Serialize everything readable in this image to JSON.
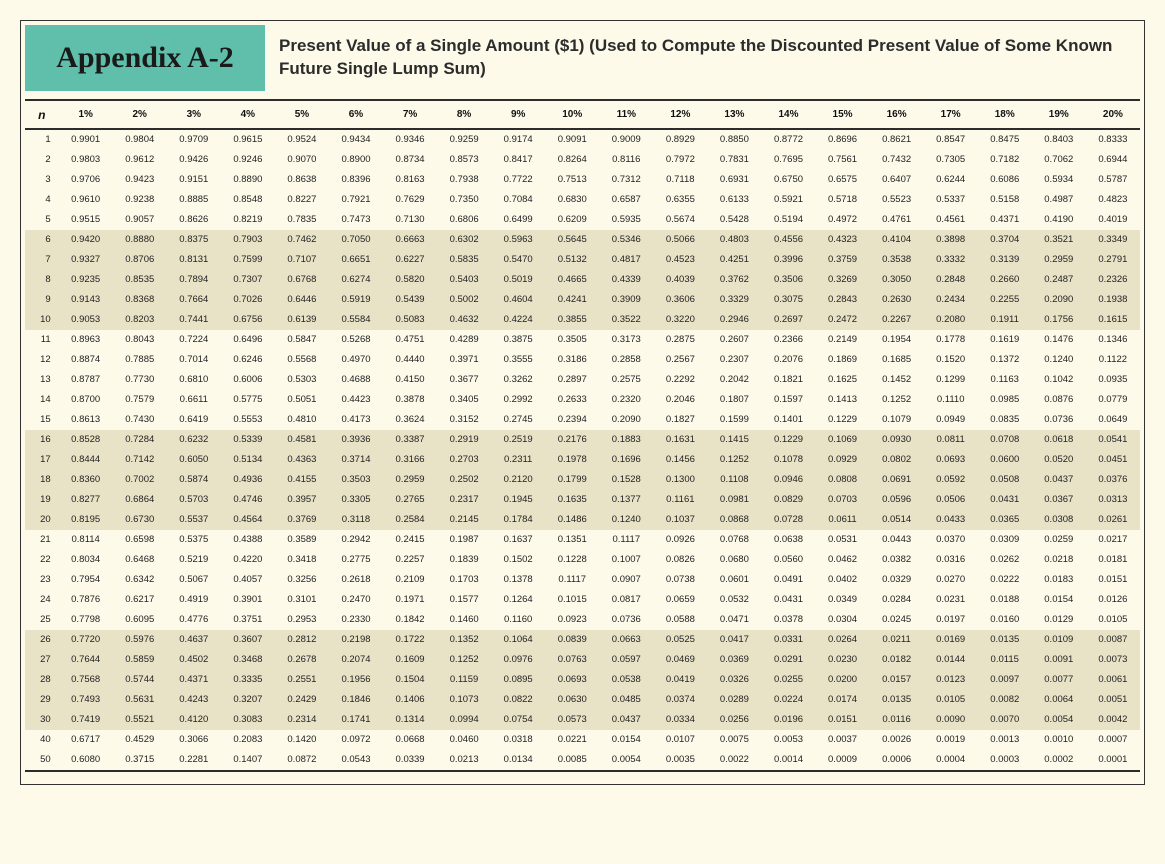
{
  "header": {
    "appendix_label": "Appendix A-2",
    "title": "Present Value of a Single Amount ($1) (Used to Compute the Discounted Present Value of Some Known Future Single Lump Sum)"
  },
  "styling": {
    "badge_bg": "#5fbfaa",
    "page_bg": "#fdfaea",
    "band_bg": "#e8e2c6",
    "rule_color": "#2c2c2c",
    "appendix_font": "Brush Script MT",
    "appendix_fontsize": 30,
    "title_fontsize": 17,
    "header_fontsize": 10,
    "cell_fontsize": 9.5,
    "band_size": 5
  },
  "table": {
    "n_label": "n",
    "columns": [
      "1%",
      "2%",
      "3%",
      "4%",
      "5%",
      "6%",
      "7%",
      "8%",
      "9%",
      "10%",
      "11%",
      "12%",
      "13%",
      "14%",
      "15%",
      "16%",
      "17%",
      "18%",
      "19%",
      "20%"
    ],
    "rows": [
      {
        "n": 1,
        "v": [
          "0.9901",
          "0.9804",
          "0.9709",
          "0.9615",
          "0.9524",
          "0.9434",
          "0.9346",
          "0.9259",
          "0.9174",
          "0.9091",
          "0.9009",
          "0.8929",
          "0.8850",
          "0.8772",
          "0.8696",
          "0.8621",
          "0.8547",
          "0.8475",
          "0.8403",
          "0.8333"
        ]
      },
      {
        "n": 2,
        "v": [
          "0.9803",
          "0.9612",
          "0.9426",
          "0.9246",
          "0.9070",
          "0.8900",
          "0.8734",
          "0.8573",
          "0.8417",
          "0.8264",
          "0.8116",
          "0.7972",
          "0.7831",
          "0.7695",
          "0.7561",
          "0.7432",
          "0.7305",
          "0.7182",
          "0.7062",
          "0.6944"
        ]
      },
      {
        "n": 3,
        "v": [
          "0.9706",
          "0.9423",
          "0.9151",
          "0.8890",
          "0.8638",
          "0.8396",
          "0.8163",
          "0.7938",
          "0.7722",
          "0.7513",
          "0.7312",
          "0.7118",
          "0.6931",
          "0.6750",
          "0.6575",
          "0.6407",
          "0.6244",
          "0.6086",
          "0.5934",
          "0.5787"
        ]
      },
      {
        "n": 4,
        "v": [
          "0.9610",
          "0.9238",
          "0.8885",
          "0.8548",
          "0.8227",
          "0.7921",
          "0.7629",
          "0.7350",
          "0.7084",
          "0.6830",
          "0.6587",
          "0.6355",
          "0.6133",
          "0.5921",
          "0.5718",
          "0.5523",
          "0.5337",
          "0.5158",
          "0.4987",
          "0.4823"
        ]
      },
      {
        "n": 5,
        "v": [
          "0.9515",
          "0.9057",
          "0.8626",
          "0.8219",
          "0.7835",
          "0.7473",
          "0.7130",
          "0.6806",
          "0.6499",
          "0.6209",
          "0.5935",
          "0.5674",
          "0.5428",
          "0.5194",
          "0.4972",
          "0.4761",
          "0.4561",
          "0.4371",
          "0.4190",
          "0.4019"
        ]
      },
      {
        "n": 6,
        "v": [
          "0.9420",
          "0.8880",
          "0.8375",
          "0.7903",
          "0.7462",
          "0.7050",
          "0.6663",
          "0.6302",
          "0.5963",
          "0.5645",
          "0.5346",
          "0.5066",
          "0.4803",
          "0.4556",
          "0.4323",
          "0.4104",
          "0.3898",
          "0.3704",
          "0.3521",
          "0.3349"
        ]
      },
      {
        "n": 7,
        "v": [
          "0.9327",
          "0.8706",
          "0.8131",
          "0.7599",
          "0.7107",
          "0.6651",
          "0.6227",
          "0.5835",
          "0.5470",
          "0.5132",
          "0.4817",
          "0.4523",
          "0.4251",
          "0.3996",
          "0.3759",
          "0.3538",
          "0.3332",
          "0.3139",
          "0.2959",
          "0.2791"
        ]
      },
      {
        "n": 8,
        "v": [
          "0.9235",
          "0.8535",
          "0.7894",
          "0.7307",
          "0.6768",
          "0.6274",
          "0.5820",
          "0.5403",
          "0.5019",
          "0.4665",
          "0.4339",
          "0.4039",
          "0.3762",
          "0.3506",
          "0.3269",
          "0.3050",
          "0.2848",
          "0.2660",
          "0.2487",
          "0.2326"
        ]
      },
      {
        "n": 9,
        "v": [
          "0.9143",
          "0.8368",
          "0.7664",
          "0.7026",
          "0.6446",
          "0.5919",
          "0.5439",
          "0.5002",
          "0.4604",
          "0.4241",
          "0.3909",
          "0.3606",
          "0.3329",
          "0.3075",
          "0.2843",
          "0.2630",
          "0.2434",
          "0.2255",
          "0.2090",
          "0.1938"
        ]
      },
      {
        "n": 10,
        "v": [
          "0.9053",
          "0.8203",
          "0.7441",
          "0.6756",
          "0.6139",
          "0.5584",
          "0.5083",
          "0.4632",
          "0.4224",
          "0.3855",
          "0.3522",
          "0.3220",
          "0.2946",
          "0.2697",
          "0.2472",
          "0.2267",
          "0.2080",
          "0.1911",
          "0.1756",
          "0.1615"
        ]
      },
      {
        "n": 11,
        "v": [
          "0.8963",
          "0.8043",
          "0.7224",
          "0.6496",
          "0.5847",
          "0.5268",
          "0.4751",
          "0.4289",
          "0.3875",
          "0.3505",
          "0.3173",
          "0.2875",
          "0.2607",
          "0.2366",
          "0.2149",
          "0.1954",
          "0.1778",
          "0.1619",
          "0.1476",
          "0.1346"
        ]
      },
      {
        "n": 12,
        "v": [
          "0.8874",
          "0.7885",
          "0.7014",
          "0.6246",
          "0.5568",
          "0.4970",
          "0.4440",
          "0.3971",
          "0.3555",
          "0.3186",
          "0.2858",
          "0.2567",
          "0.2307",
          "0.2076",
          "0.1869",
          "0.1685",
          "0.1520",
          "0.1372",
          "0.1240",
          "0.1122"
        ]
      },
      {
        "n": 13,
        "v": [
          "0.8787",
          "0.7730",
          "0.6810",
          "0.6006",
          "0.5303",
          "0.4688",
          "0.4150",
          "0.3677",
          "0.3262",
          "0.2897",
          "0.2575",
          "0.2292",
          "0.2042",
          "0.1821",
          "0.1625",
          "0.1452",
          "0.1299",
          "0.1163",
          "0.1042",
          "0.0935"
        ]
      },
      {
        "n": 14,
        "v": [
          "0.8700",
          "0.7579",
          "0.6611",
          "0.5775",
          "0.5051",
          "0.4423",
          "0.3878",
          "0.3405",
          "0.2992",
          "0.2633",
          "0.2320",
          "0.2046",
          "0.1807",
          "0.1597",
          "0.1413",
          "0.1252",
          "0.1110",
          "0.0985",
          "0.0876",
          "0.0779"
        ]
      },
      {
        "n": 15,
        "v": [
          "0.8613",
          "0.7430",
          "0.6419",
          "0.5553",
          "0.4810",
          "0.4173",
          "0.3624",
          "0.3152",
          "0.2745",
          "0.2394",
          "0.2090",
          "0.1827",
          "0.1599",
          "0.1401",
          "0.1229",
          "0.1079",
          "0.0949",
          "0.0835",
          "0.0736",
          "0.0649"
        ]
      },
      {
        "n": 16,
        "v": [
          "0.8528",
          "0.7284",
          "0.6232",
          "0.5339",
          "0.4581",
          "0.3936",
          "0.3387",
          "0.2919",
          "0.2519",
          "0.2176",
          "0.1883",
          "0.1631",
          "0.1415",
          "0.1229",
          "0.1069",
          "0.0930",
          "0.0811",
          "0.0708",
          "0.0618",
          "0.0541"
        ]
      },
      {
        "n": 17,
        "v": [
          "0.8444",
          "0.7142",
          "0.6050",
          "0.5134",
          "0.4363",
          "0.3714",
          "0.3166",
          "0.2703",
          "0.2311",
          "0.1978",
          "0.1696",
          "0.1456",
          "0.1252",
          "0.1078",
          "0.0929",
          "0.0802",
          "0.0693",
          "0.0600",
          "0.0520",
          "0.0451"
        ]
      },
      {
        "n": 18,
        "v": [
          "0.8360",
          "0.7002",
          "0.5874",
          "0.4936",
          "0.4155",
          "0.3503",
          "0.2959",
          "0.2502",
          "0.2120",
          "0.1799",
          "0.1528",
          "0.1300",
          "0.1108",
          "0.0946",
          "0.0808",
          "0.0691",
          "0.0592",
          "0.0508",
          "0.0437",
          "0.0376"
        ]
      },
      {
        "n": 19,
        "v": [
          "0.8277",
          "0.6864",
          "0.5703",
          "0.4746",
          "0.3957",
          "0.3305",
          "0.2765",
          "0.2317",
          "0.1945",
          "0.1635",
          "0.1377",
          "0.1161",
          "0.0981",
          "0.0829",
          "0.0703",
          "0.0596",
          "0.0506",
          "0.0431",
          "0.0367",
          "0.0313"
        ]
      },
      {
        "n": 20,
        "v": [
          "0.8195",
          "0.6730",
          "0.5537",
          "0.4564",
          "0.3769",
          "0.3118",
          "0.2584",
          "0.2145",
          "0.1784",
          "0.1486",
          "0.1240",
          "0.1037",
          "0.0868",
          "0.0728",
          "0.0611",
          "0.0514",
          "0.0433",
          "0.0365",
          "0.0308",
          "0.0261"
        ]
      },
      {
        "n": 21,
        "v": [
          "0.8114",
          "0.6598",
          "0.5375",
          "0.4388",
          "0.3589",
          "0.2942",
          "0.2415",
          "0.1987",
          "0.1637",
          "0.1351",
          "0.1117",
          "0.0926",
          "0.0768",
          "0.0638",
          "0.0531",
          "0.0443",
          "0.0370",
          "0.0309",
          "0.0259",
          "0.0217"
        ]
      },
      {
        "n": 22,
        "v": [
          "0.8034",
          "0.6468",
          "0.5219",
          "0.4220",
          "0.3418",
          "0.2775",
          "0.2257",
          "0.1839",
          "0.1502",
          "0.1228",
          "0.1007",
          "0.0826",
          "0.0680",
          "0.0560",
          "0.0462",
          "0.0382",
          "0.0316",
          "0.0262",
          "0.0218",
          "0.0181"
        ]
      },
      {
        "n": 23,
        "v": [
          "0.7954",
          "0.6342",
          "0.5067",
          "0.4057",
          "0.3256",
          "0.2618",
          "0.2109",
          "0.1703",
          "0.1378",
          "0.1117",
          "0.0907",
          "0.0738",
          "0.0601",
          "0.0491",
          "0.0402",
          "0.0329",
          "0.0270",
          "0.0222",
          "0.0183",
          "0.0151"
        ]
      },
      {
        "n": 24,
        "v": [
          "0.7876",
          "0.6217",
          "0.4919",
          "0.3901",
          "0.3101",
          "0.2470",
          "0.1971",
          "0.1577",
          "0.1264",
          "0.1015",
          "0.0817",
          "0.0659",
          "0.0532",
          "0.0431",
          "0.0349",
          "0.0284",
          "0.0231",
          "0.0188",
          "0.0154",
          "0.0126"
        ]
      },
      {
        "n": 25,
        "v": [
          "0.7798",
          "0.6095",
          "0.4776",
          "0.3751",
          "0.2953",
          "0.2330",
          "0.1842",
          "0.1460",
          "0.1160",
          "0.0923",
          "0.0736",
          "0.0588",
          "0.0471",
          "0.0378",
          "0.0304",
          "0.0245",
          "0.0197",
          "0.0160",
          "0.0129",
          "0.0105"
        ]
      },
      {
        "n": 26,
        "v": [
          "0.7720",
          "0.5976",
          "0.4637",
          "0.3607",
          "0.2812",
          "0.2198",
          "0.1722",
          "0.1352",
          "0.1064",
          "0.0839",
          "0.0663",
          "0.0525",
          "0.0417",
          "0.0331",
          "0.0264",
          "0.0211",
          "0.0169",
          "0.0135",
          "0.0109",
          "0.0087"
        ]
      },
      {
        "n": 27,
        "v": [
          "0.7644",
          "0.5859",
          "0.4502",
          "0.3468",
          "0.2678",
          "0.2074",
          "0.1609",
          "0.1252",
          "0.0976",
          "0.0763",
          "0.0597",
          "0.0469",
          "0.0369",
          "0.0291",
          "0.0230",
          "0.0182",
          "0.0144",
          "0.0115",
          "0.0091",
          "0.0073"
        ]
      },
      {
        "n": 28,
        "v": [
          "0.7568",
          "0.5744",
          "0.4371",
          "0.3335",
          "0.2551",
          "0.1956",
          "0.1504",
          "0.1159",
          "0.0895",
          "0.0693",
          "0.0538",
          "0.0419",
          "0.0326",
          "0.0255",
          "0.0200",
          "0.0157",
          "0.0123",
          "0.0097",
          "0.0077",
          "0.0061"
        ]
      },
      {
        "n": 29,
        "v": [
          "0.7493",
          "0.5631",
          "0.4243",
          "0.3207",
          "0.2429",
          "0.1846",
          "0.1406",
          "0.1073",
          "0.0822",
          "0.0630",
          "0.0485",
          "0.0374",
          "0.0289",
          "0.0224",
          "0.0174",
          "0.0135",
          "0.0105",
          "0.0082",
          "0.0064",
          "0.0051"
        ]
      },
      {
        "n": 30,
        "v": [
          "0.7419",
          "0.5521",
          "0.4120",
          "0.3083",
          "0.2314",
          "0.1741",
          "0.1314",
          "0.0994",
          "0.0754",
          "0.0573",
          "0.0437",
          "0.0334",
          "0.0256",
          "0.0196",
          "0.0151",
          "0.0116",
          "0.0090",
          "0.0070",
          "0.0054",
          "0.0042"
        ]
      },
      {
        "n": 40,
        "v": [
          "0.6717",
          "0.4529",
          "0.3066",
          "0.2083",
          "0.1420",
          "0.0972",
          "0.0668",
          "0.0460",
          "0.0318",
          "0.0221",
          "0.0154",
          "0.0107",
          "0.0075",
          "0.0053",
          "0.0037",
          "0.0026",
          "0.0019",
          "0.0013",
          "0.0010",
          "0.0007"
        ]
      },
      {
        "n": 50,
        "v": [
          "0.6080",
          "0.3715",
          "0.2281",
          "0.1407",
          "0.0872",
          "0.0543",
          "0.0339",
          "0.0213",
          "0.0134",
          "0.0085",
          "0.0054",
          "0.0035",
          "0.0022",
          "0.0014",
          "0.0009",
          "0.0006",
          "0.0004",
          "0.0003",
          "0.0002",
          "0.0001"
        ]
      }
    ]
  }
}
